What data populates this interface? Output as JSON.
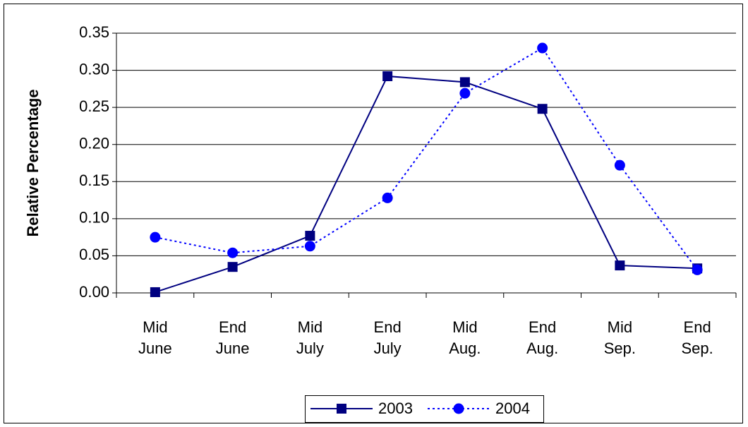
{
  "chart_data": {
    "type": "line",
    "y_label": "Relative Percentage",
    "categories": [
      "Mid June",
      "End June",
      "Mid July",
      "End July",
      "Mid Aug.",
      "End Aug.",
      "Mid Sep.",
      "End Sep."
    ],
    "series": [
      {
        "name": "2003",
        "color": "#000080",
        "marker": "square",
        "line_style": "solid",
        "values": [
          0.001,
          0.035,
          0.077,
          0.292,
          0.284,
          0.248,
          0.037,
          0.033
        ]
      },
      {
        "name": "2004",
        "color": "#0000ff",
        "marker": "circle",
        "line_style": "dotted",
        "values": [
          0.075,
          0.054,
          0.063,
          0.128,
          0.269,
          0.33,
          0.172,
          0.031
        ]
      }
    ],
    "ylim": [
      0,
      0.35
    ],
    "yticks": [
      {
        "value": 0,
        "label": "0.00"
      },
      {
        "value": 0.05,
        "label": "0.05"
      },
      {
        "value": 0.1,
        "label": "0.10"
      },
      {
        "value": 0.15,
        "label": "0.15"
      },
      {
        "value": 0.2,
        "label": "0.20"
      },
      {
        "value": 0.25,
        "label": "0.25"
      },
      {
        "value": 0.3,
        "label": "0.30"
      },
      {
        "value": 0.35,
        "label": "0.35"
      }
    ],
    "grid": true,
    "legend": "bottom"
  }
}
